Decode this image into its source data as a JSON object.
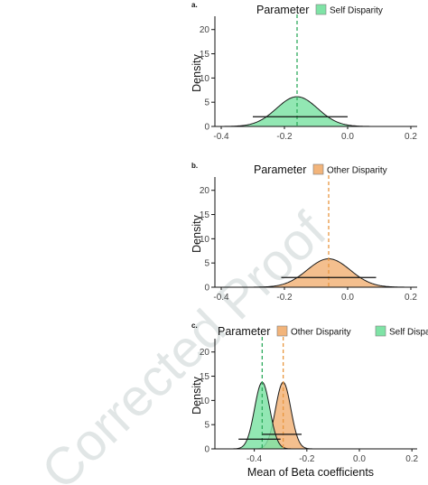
{
  "watermark": "Corrected Proof",
  "colors": {
    "self": "#7fe3a6",
    "self_line": "#2eaa5c",
    "other": "#f2b47a",
    "other_line": "#e9963f",
    "axis": "#111111",
    "tick_text": "#444444",
    "watermark": "#c9d3d3"
  },
  "chart_data": [
    {
      "type": "area",
      "panel_label": "a.",
      "legend_title": "Parameter",
      "legend_position": "top",
      "ylabel": "Density",
      "xlabel": "",
      "xlim": [
        -0.42,
        0.22
      ],
      "ylim": [
        0,
        22
      ],
      "x_ticks": [
        -0.4,
        -0.2,
        0.0,
        0.2
      ],
      "x_tick_labels": [
        "-0.4",
        "-0.2",
        "0.0",
        "0.2"
      ],
      "y_ticks": [
        0,
        5,
        10,
        15,
        20
      ],
      "y_tick_labels": [
        "0",
        "5",
        "10",
        "15",
        "20"
      ],
      "grid": false,
      "series": [
        {
          "name": "Self Disparity",
          "color_key": "self",
          "distribution": "normal",
          "mean": -0.16,
          "sd": 0.065,
          "interval": [
            -0.3,
            0.0
          ],
          "interval_y": 2.0,
          "dashed_mean": true
        }
      ]
    },
    {
      "type": "area",
      "panel_label": "b.",
      "legend_title": "Parameter",
      "legend_position": "top",
      "ylabel": "Density",
      "xlabel": "",
      "xlim": [
        -0.42,
        0.22
      ],
      "ylim": [
        0,
        22
      ],
      "x_ticks": [
        -0.4,
        -0.2,
        0.0,
        0.2
      ],
      "x_tick_labels": [
        "-0.4",
        "-0.2",
        "0.0",
        "0.2"
      ],
      "y_ticks": [
        0,
        5,
        10,
        15,
        20
      ],
      "y_tick_labels": [
        "0",
        "5",
        "10",
        "15",
        "20"
      ],
      "grid": false,
      "series": [
        {
          "name": "Other Disparity",
          "color_key": "other",
          "distribution": "normal",
          "mean": -0.06,
          "sd": 0.068,
          "interval": [
            -0.21,
            0.09
          ],
          "interval_y": 2.0,
          "dashed_mean": true
        }
      ]
    },
    {
      "type": "area",
      "panel_label": "c.",
      "legend_title": "Parameter",
      "legend_position": "top",
      "ylabel": "Density",
      "xlabel": "Mean of Beta coefficients",
      "xlim": [
        -0.55,
        0.22
      ],
      "ylim": [
        0,
        22
      ],
      "x_ticks": [
        -0.4,
        -0.2,
        0.0,
        0.2
      ],
      "x_tick_labels": [
        "-0.4",
        "-0.2",
        "0.0",
        "0.2"
      ],
      "y_ticks": [
        0,
        5,
        10,
        15,
        20
      ],
      "y_tick_labels": [
        "0",
        "5",
        "10",
        "15",
        "20"
      ],
      "grid": false,
      "series": [
        {
          "name": "Other Disparity",
          "color_key": "other",
          "distribution": "normal",
          "mean": -0.29,
          "sd": 0.029,
          "interval": [
            -0.37,
            -0.22
          ],
          "interval_y": 3.0,
          "dashed_mean": true
        },
        {
          "name": "Self Disparity",
          "color_key": "self",
          "distribution": "normal",
          "mean": -0.37,
          "sd": 0.029,
          "interval": [
            -0.46,
            -0.3
          ],
          "interval_y": 2.0,
          "dashed_mean": true
        }
      ]
    }
  ]
}
